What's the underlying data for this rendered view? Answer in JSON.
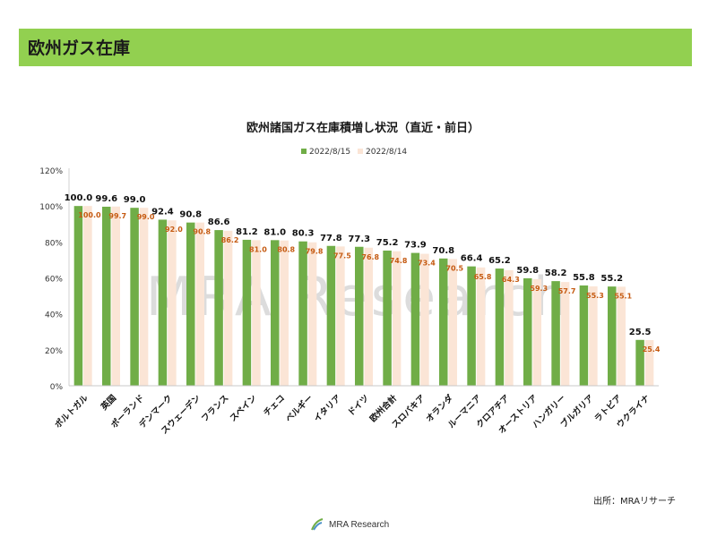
{
  "header": {
    "title": "欧州ガス在庫"
  },
  "source_text": "出所：MRAリサーチ",
  "watermark_text": "MRA Research",
  "footer_logo_text": "MRA Research",
  "colors": {
    "header_bg": "#92d050",
    "series_current": "#70ad47",
    "series_prev": "#fbe5d6",
    "prev_label": "#c55a11"
  },
  "chart_data": {
    "type": "bar",
    "title": "欧州諸国ガス在庫積増し状況（直近・前日）",
    "xlabel": "",
    "ylabel": "",
    "ylim": [
      0,
      120
    ],
    "yticks": [
      "0%",
      "20%",
      "40%",
      "60%",
      "80%",
      "100%",
      "120%"
    ],
    "ytick_values": [
      0,
      20,
      40,
      60,
      80,
      100,
      120
    ],
    "grid": false,
    "legend_position": "top-center",
    "categories": [
      "ポルトガル",
      "英国",
      "ポーランド",
      "デンマーク",
      "スウェーデン",
      "フランス",
      "スペイン",
      "チェコ",
      "ベルギー",
      "イタリア",
      "ドイツ",
      "欧州合計",
      "スロバキア",
      "オランダ",
      "ルーマニア",
      "クロアチア",
      "オーストリア",
      "ハンガリー",
      "ブルガリア",
      "ラトビア",
      "ウクライナ"
    ],
    "series": [
      {
        "name": "2022/8/15",
        "values": [
          100.0,
          99.6,
          99.0,
          92.4,
          90.8,
          86.6,
          81.2,
          81.0,
          80.3,
          77.8,
          77.3,
          75.2,
          73.9,
          70.8,
          66.4,
          65.2,
          59.8,
          58.2,
          55.8,
          55.2,
          25.5
        ],
        "labels": [
          "100.0",
          "99.6",
          "99.0",
          "92.4",
          "90.8",
          "86.6",
          "81.2",
          "81.0",
          "80.3",
          "77.8",
          "77.3",
          "75.2",
          "73.9",
          "70.8",
          "66.4",
          "65.2",
          "59.8",
          "58.2",
          "55.8",
          "55.2",
          "25.5"
        ]
      },
      {
        "name": "2022/8/14",
        "values": [
          100.0,
          99.7,
          99.0,
          92.0,
          90.8,
          86.2,
          81.0,
          80.8,
          79.8,
          77.5,
          76.8,
          74.8,
          73.4,
          70.5,
          65.8,
          64.3,
          59.3,
          57.7,
          55.3,
          55.1,
          25.4
        ],
        "labels": [
          "100.0",
          "99.7",
          "99.0",
          "92.0",
          "90.8",
          "86.2",
          "81.0",
          "80.8",
          "79.8",
          "77.5",
          "76.8",
          "74.8",
          "73.4",
          "70.5",
          "65.8",
          "64.3",
          "59.3",
          "57.7",
          "55.3",
          "55.1",
          "25.4"
        ]
      }
    ]
  }
}
